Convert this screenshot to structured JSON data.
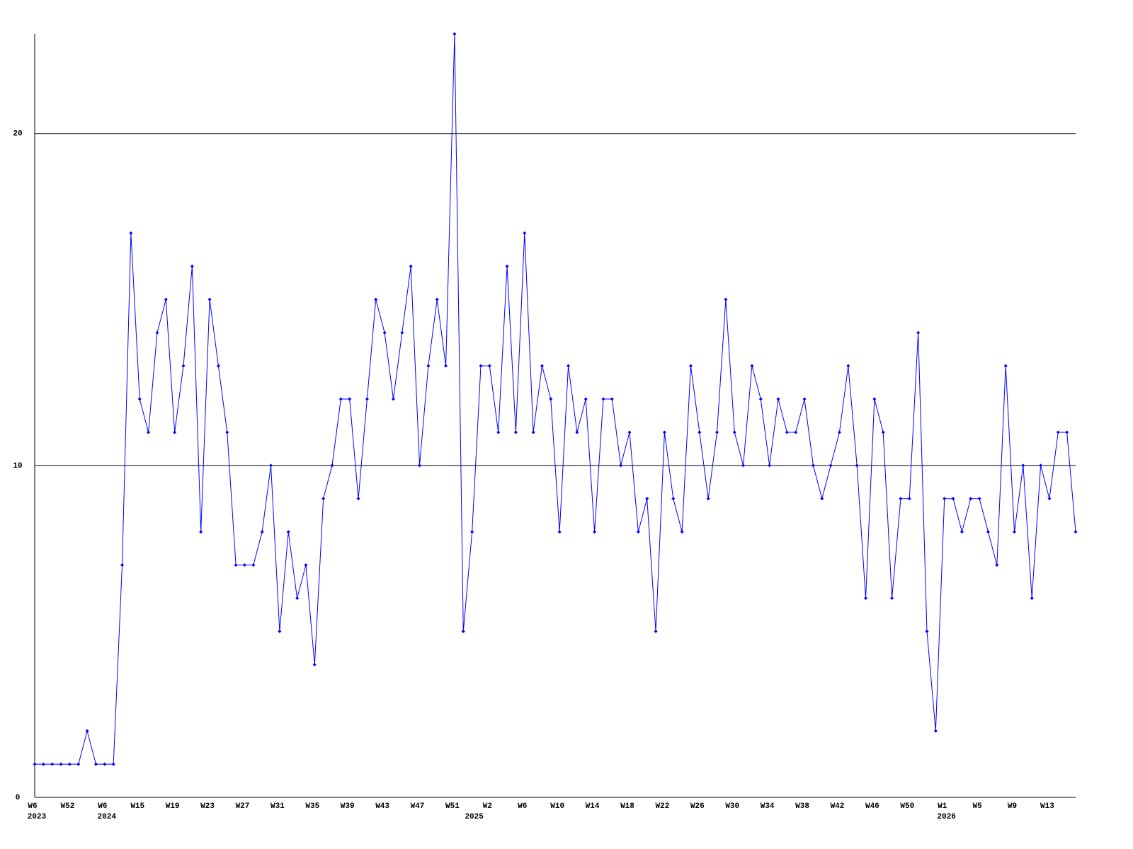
{
  "chart_data": {
    "type": "line",
    "categories": [
      "W6",
      null,
      null,
      null,
      "W52",
      null,
      null,
      null,
      "W6",
      null,
      null,
      null,
      "W15",
      null,
      null,
      null,
      "W19",
      null,
      null,
      null,
      "W23",
      null,
      null,
      null,
      "W27",
      null,
      null,
      null,
      "W31",
      null,
      null,
      null,
      "W35",
      null,
      null,
      null,
      "W39",
      null,
      null,
      null,
      "W43",
      null,
      null,
      null,
      "W47",
      null,
      null,
      null,
      "W51",
      null,
      null,
      null,
      "W2",
      null,
      null,
      null,
      "W6",
      null,
      null,
      null,
      "W10",
      null,
      null,
      null,
      "W14",
      null,
      null,
      null,
      "W18",
      null,
      null,
      null,
      "W22",
      null,
      null,
      null,
      "W26",
      null,
      null,
      null,
      "W30",
      null,
      null,
      null,
      "W34",
      null,
      null,
      null,
      "W38",
      null,
      null,
      null,
      "W42",
      null,
      null,
      null,
      "W46",
      null,
      null,
      null,
      "W50",
      null,
      null,
      null,
      "W1",
      null,
      null,
      null,
      "W5",
      null,
      null,
      null,
      "W9",
      null,
      null,
      null,
      "W13",
      null,
      null,
      null
    ],
    "year_labels": [
      "2023",
      null,
      null,
      null,
      null,
      null,
      null,
      null,
      "2024",
      null,
      null,
      null,
      null,
      null,
      null,
      null,
      null,
      null,
      null,
      null,
      null,
      null,
      null,
      null,
      null,
      null,
      null,
      null,
      null,
      null,
      null,
      null,
      null,
      null,
      null,
      null,
      null,
      null,
      null,
      null,
      null,
      null,
      null,
      null,
      null,
      null,
      null,
      null,
      null,
      null,
      "2025",
      null,
      null,
      null,
      null,
      null,
      null,
      null,
      null,
      null,
      null,
      null,
      null,
      null,
      null,
      null,
      null,
      null,
      null,
      null,
      null,
      null,
      null,
      null,
      null,
      null,
      null,
      null,
      null,
      null,
      null,
      null,
      null,
      null,
      null,
      null,
      null,
      null,
      null,
      null,
      null,
      null,
      null,
      null,
      null,
      null,
      null,
      null,
      null,
      null,
      null,
      null,
      null,
      null,
      "2026",
      null,
      null,
      null,
      null,
      null,
      null,
      null,
      null,
      null,
      null,
      null,
      null,
      null,
      null,
      null
    ],
    "values": [
      1,
      1,
      1,
      1,
      1,
      1,
      2,
      1,
      1,
      1,
      7,
      17,
      12,
      11,
      14,
      15,
      11,
      13,
      16,
      8,
      15,
      13,
      11,
      7,
      7,
      7,
      8,
      10,
      5,
      8,
      6,
      7,
      4,
      9,
      10,
      12,
      12,
      9,
      12,
      15,
      14,
      12,
      14,
      16,
      10,
      13,
      15,
      13,
      23,
      5,
      8,
      13,
      13,
      11,
      16,
      11,
      17,
      11,
      13,
      12,
      8,
      13,
      11,
      12,
      8,
      12,
      12,
      10,
      11,
      8,
      9,
      5,
      11,
      9,
      8,
      13,
      11,
      9,
      11,
      15,
      11,
      10,
      13,
      12,
      10,
      12,
      11,
      11,
      12,
      10,
      9,
      10,
      11,
      13,
      10,
      6,
      12,
      11,
      6,
      9,
      9,
      14,
      5,
      2,
      9,
      9,
      8,
      9,
      9,
      8,
      7,
      13,
      8,
      10,
      6,
      10,
      9,
      11,
      11,
      8
    ],
    "color": "#0000ff",
    "ylim": [
      0,
      23
    ],
    "yticks": [
      0,
      10,
      20
    ],
    "grid": true
  }
}
